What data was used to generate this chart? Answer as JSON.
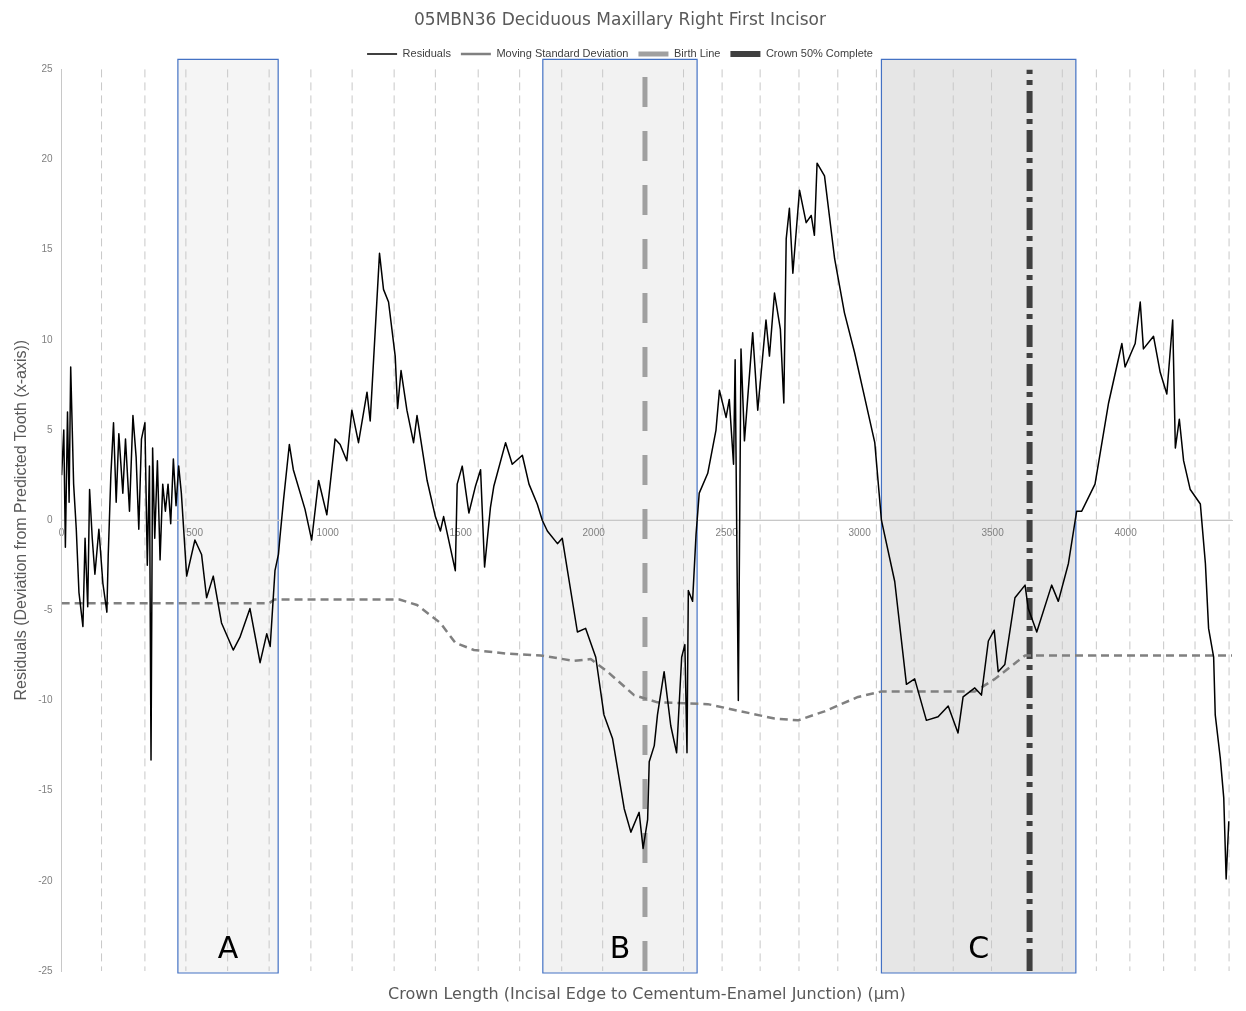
{
  "chart_data": {
    "type": "line",
    "title": "05MBN36 Deciduous Maxillary Right First Incisor",
    "xlabel": "Crown Length (Incisal Edge to Cementum-Enamel Junction) (µm)",
    "ylabel": "Residuals (Deviation from Predicted Tooth (x-axis))",
    "xlim": [
      0,
      4400
    ],
    "xticks": [
      0,
      500,
      1000,
      1500,
      2000,
      2500,
      3000,
      3500,
      4000
    ],
    "ylim": [
      -25,
      25
    ],
    "yticks": [
      -25,
      -20,
      -15,
      -10,
      -5,
      0,
      5,
      10,
      15,
      20,
      25
    ],
    "grid": false,
    "legend": "top",
    "marker": "none",
    "series": [
      {
        "name": "Residuals",
        "color": "#000000",
        "line_style": "solid",
        "x": [
          0,
          8,
          14,
          22,
          28,
          34,
          45,
          55,
          65,
          80,
          88,
          98,
          105,
          115,
          125,
          140,
          155,
          170,
          175,
          185,
          195,
          205,
          215,
          230,
          240,
          255,
          268,
          280,
          290,
          300,
          313,
          322,
          330,
          336,
          342,
          350,
          360,
          370,
          380,
          390,
          400,
          410,
          420,
          430,
          440,
          450,
          470,
          501,
          526,
          545,
          570,
          601,
          645,
          670,
          708,
          746,
          771,
          784,
          802,
          815,
          821,
          834,
          856,
          871,
          915,
          940,
          966,
          997,
          1028,
          1047,
          1072,
          1091,
          1116,
          1148,
          1160,
          1195,
          1210,
          1229,
          1254,
          1263,
          1276,
          1298,
          1323,
          1336,
          1374,
          1405,
          1424,
          1436,
          1480,
          1487,
          1506,
          1531,
          1556,
          1575,
          1590,
          1612,
          1625,
          1669,
          1694,
          1732,
          1757,
          1788,
          1807,
          1826,
          1864,
          1882,
          1939,
          1970,
          2008,
          2039,
          2071,
          2115,
          2140,
          2171,
          2186,
          2203,
          2209,
          2228,
          2240,
          2265,
          2290,
          2312,
          2331,
          2343,
          2351,
          2356,
          2372,
          2385,
          2397,
          2429,
          2460,
          2473,
          2498,
          2510,
          2526,
          2532,
          2544,
          2554,
          2567,
          2598,
          2617,
          2648,
          2661,
          2680,
          2702,
          2715,
          2724,
          2736,
          2749,
          2774,
          2799,
          2818,
          2830,
          2840,
          2868,
          2906,
          2943,
          2981,
          3013,
          3057,
          3082,
          3132,
          3176,
          3207,
          3251,
          3295,
          3333,
          3370,
          3389,
          3433,
          3458,
          3484,
          3506,
          3521,
          3546,
          3584,
          3622,
          3634,
          3666,
          3722,
          3747,
          3785,
          3816,
          3835,
          3885,
          3936,
          3986,
          3998,
          4036,
          4055,
          4067,
          4105,
          4130,
          4155,
          4177,
          4187,
          4202,
          4218,
          4243,
          4281,
          4285,
          4300,
          4312,
          4331,
          4337,
          4356,
          4369,
          4378,
          4388
        ],
        "values": [
          2.5,
          5,
          -1.5,
          6,
          1,
          8.5,
          2,
          -0.5,
          -4,
          -5.9,
          -1,
          -4.8,
          1.7,
          -1,
          -3,
          -0.5,
          -3.5,
          -5.1,
          -2,
          2.5,
          5.4,
          1,
          4.8,
          1.5,
          4.5,
          0.5,
          5.8,
          3.5,
          -0.5,
          4.5,
          5.4,
          -2.5,
          3,
          -13.3,
          4,
          -1,
          3.3,
          -2.2,
          2,
          0.5,
          2,
          -0.2,
          3.4,
          0.8,
          3,
          1.5,
          -3.1,
          -1.1,
          -1.9,
          -4.3,
          -3.1,
          -5.7,
          -7.2,
          -6.5,
          -4.9,
          -7.9,
          -6.3,
          -7,
          -2.8,
          -1.9,
          -0.9,
          1.1,
          4.2,
          2.8,
          0.6,
          -1.1,
          2.2,
          0.3,
          4.5,
          4.2,
          3.3,
          6.1,
          4.3,
          7.1,
          5.5,
          14.8,
          12.8,
          12.1,
          9.1,
          6.2,
          8.3,
          6.1,
          4.3,
          5.8,
          2.2,
          0.2,
          -0.6,
          0.2,
          -2.8,
          2,
          3,
          0.4,
          1.9,
          2.8,
          -2.6,
          0.7,
          1.9,
          4.3,
          3.1,
          3.6,
          2,
          0.9,
          0,
          -0.6,
          -1.3,
          -1,
          -6.2,
          -6,
          -7.6,
          -10.8,
          -12.1,
          -16,
          -17.3,
          -16.2,
          -18.2,
          -16.6,
          -13.4,
          -12.5,
          -10.8,
          -8.4,
          -11.4,
          -12.9,
          -7.6,
          -6.9,
          -12.9,
          -3.9,
          -4.5,
          -0.8,
          1.5,
          2.6,
          5,
          7.2,
          5.7,
          6.7,
          3.1,
          8.9,
          -10,
          9.5,
          4.4,
          10.4,
          6.1,
          11.1,
          9.1,
          12.6,
          10.6,
          6.5,
          15.6,
          17.3,
          13.7,
          18.3,
          16.5,
          16.9,
          15.8,
          19.8,
          19.1,
          14.5,
          11.5,
          9.3,
          7.2,
          4.3,
          0,
          -3.4,
          -9.1,
          -8.8,
          -11.1,
          -10.9,
          -10.3,
          -11.8,
          -9.8,
          -9.3,
          -9.7,
          -6.7,
          -6.1,
          -8.4,
          -8,
          -4.3,
          -3.6,
          -4.9,
          -6.2,
          -3.6,
          -4.5,
          -2.4,
          0.5,
          0.5,
          2,
          6.5,
          9.8,
          8.5,
          9.8,
          12.1,
          9.5,
          10.2,
          8.2,
          7,
          11.1,
          4,
          5.6,
          3.3,
          1.7,
          0.9,
          0.2,
          -2.4,
          -6,
          -7.6,
          -10.8,
          -13.2,
          -15.4,
          -19.9,
          -16.7
        ]
      },
      {
        "name": "Moving Standard Deviation",
        "color": "#808080",
        "line_style": "dashed",
        "x": [
          0,
          780,
          800,
          1270,
          1336,
          1424,
          1480,
          1550,
          1675,
          1801,
          1926,
          1989,
          2052,
          2152,
          2240,
          2429,
          2554,
          2680,
          2768,
          2868,
          2994,
          3082,
          3433,
          3509,
          3622,
          4400
        ],
        "values": [
          -4.6,
          -4.6,
          -4.4,
          -4.4,
          -4.7,
          -5.7,
          -6.8,
          -7.2,
          -7.4,
          -7.5,
          -7.8,
          -7.7,
          -8.4,
          -9.7,
          -10.1,
          -10.2,
          -10.6,
          -11,
          -11.1,
          -10.6,
          -9.8,
          -9.5,
          -9.5,
          -8.8,
          -7.5,
          -7.5
        ]
      },
      {
        "name": "Birth Line",
        "color": "#a0a0a0",
        "line_style": "dashed",
        "x": [
          2193,
          2193
        ],
        "values": [
          -25,
          25
        ]
      },
      {
        "name": "Crown 50% Complete",
        "color": "#404040",
        "line_style": "dashdot",
        "x": [
          3639,
          3639
        ],
        "values": [
          -25,
          25
        ]
      }
    ],
    "bands": [
      {
        "axis": "x",
        "from": 437,
        "to": 814,
        "label": "A",
        "color": "#f5f5f5"
      },
      {
        "axis": "x",
        "from": 1809,
        "to": 2389,
        "label": "B",
        "color": "#f2f2f2"
      },
      {
        "axis": "x",
        "from": 3082,
        "to": 3813,
        "label": "C",
        "color": "#e6e6e6"
      }
    ],
    "ref_lines": [
      {
        "axis": "x",
        "value": 150
      },
      {
        "axis": "x",
        "value": 313
      },
      {
        "axis": "x",
        "value": 467
      },
      {
        "axis": "x",
        "value": 624
      },
      {
        "axis": "x",
        "value": 780
      },
      {
        "axis": "x",
        "value": 937
      },
      {
        "axis": "x",
        "value": 1092
      },
      {
        "axis": "x",
        "value": 1250
      },
      {
        "axis": "x",
        "value": 1405
      },
      {
        "axis": "x",
        "value": 1566
      },
      {
        "axis": "x",
        "value": 1722
      },
      {
        "axis": "x",
        "value": 1880
      },
      {
        "axis": "x",
        "value": 2034
      },
      {
        "axis": "x",
        "value": 2338
      },
      {
        "axis": "x",
        "value": 2483
      },
      {
        "axis": "x",
        "value": 2626
      },
      {
        "axis": "x",
        "value": 2772
      },
      {
        "axis": "x",
        "value": 2918
      },
      {
        "axis": "x",
        "value": 3063
      },
      {
        "axis": "x",
        "value": 3205
      },
      {
        "axis": "x",
        "value": 3352
      },
      {
        "axis": "x",
        "value": 3496
      },
      {
        "axis": "x",
        "value": 3762
      },
      {
        "axis": "x",
        "value": 3890
      },
      {
        "axis": "x",
        "value": 4016
      },
      {
        "axis": "x",
        "value": 4143
      },
      {
        "axis": "x",
        "value": 4261
      },
      {
        "axis": "x",
        "value": 4389
      }
    ]
  }
}
